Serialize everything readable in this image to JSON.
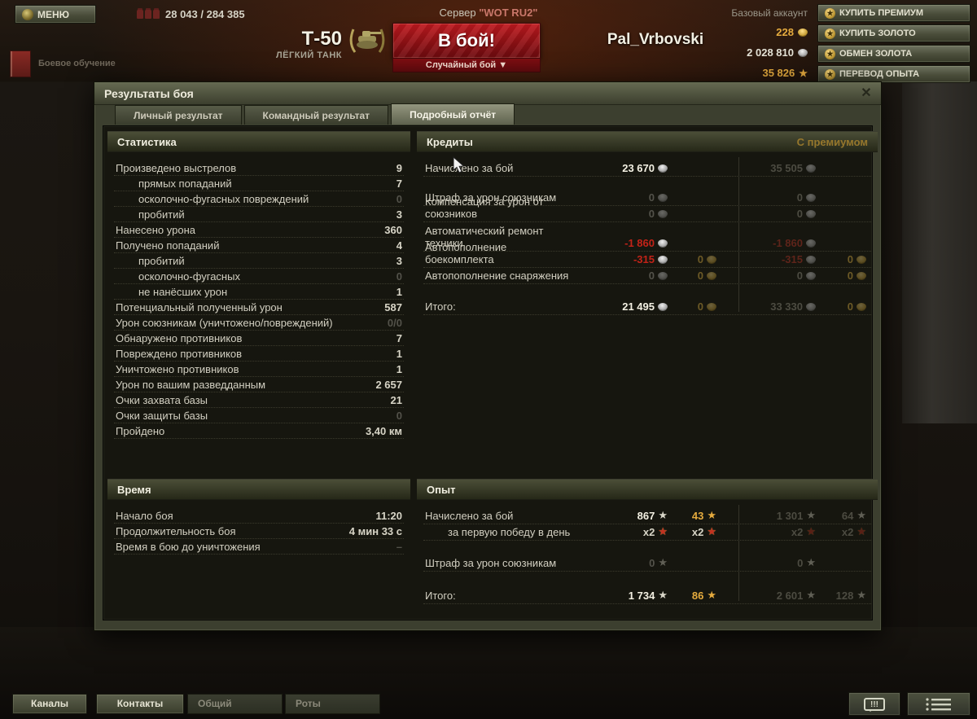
{
  "colors": {
    "accent_red": "#c32318",
    "gold": "#e5ab3e",
    "premium_dim": "#4c4b41",
    "olive": "#4a4d3a"
  },
  "top_bar": {
    "menu_label": "МЕНЮ",
    "online_counter": "28 043 / 284 385",
    "server_prefix": "Сервер",
    "server_name": "\"WOT RU2\"",
    "training_label": "Боевое обучение",
    "tank_name": "Т-50",
    "tank_type": "ЛЁГКИЙ ТАНК",
    "battle_button": "В бой!",
    "battle_mode": "Случайный бой ▼",
    "player_name": "Pal_Vrbovski",
    "account_type": "Базовый аккаунт",
    "gold_amount": "228",
    "silver_amount": "2 028 810",
    "free_xp_amount": "35 826",
    "buttons": [
      "КУПИТЬ ПРЕМИУМ",
      "КУПИТЬ ЗОЛОТО",
      "ОБМЕН ЗОЛОТА",
      "ПЕРЕВОД ОПЫТА"
    ]
  },
  "dialog": {
    "title": "Результаты боя",
    "close": "✕",
    "tabs": [
      {
        "label": "Личный результат",
        "active": false
      },
      {
        "label": "Командный результат",
        "active": false
      },
      {
        "label": "Подробный отчёт",
        "active": true
      }
    ],
    "statistics": {
      "header": "Статистика",
      "rows": [
        {
          "label": "Произведено выстрелов",
          "value": "9"
        },
        {
          "label": "прямых попаданий",
          "value": "7",
          "indent": true
        },
        {
          "label": "осколочно-фугасных повреждений",
          "value": "0",
          "indent": true,
          "dim": true
        },
        {
          "label": "пробитий",
          "value": "3",
          "indent": true
        },
        {
          "label": "Нанесено урона",
          "value": "360"
        },
        {
          "label": "Получено попаданий",
          "value": "4"
        },
        {
          "label": "пробитий",
          "value": "3",
          "indent": true
        },
        {
          "label": "осколочно-фугасных",
          "value": "0",
          "indent": true,
          "dim": true
        },
        {
          "label": "не нанёсших урон",
          "value": "1",
          "indent": true
        },
        {
          "label": "Потенциальный полученный урон",
          "value": "587"
        },
        {
          "label": "Урон союзникам (уничтожено/повреждений)",
          "value": "0/0",
          "dim": true
        },
        {
          "label": "Обнаружено противников",
          "value": "7"
        },
        {
          "label": "Повреждено противников",
          "value": "1"
        },
        {
          "label": "Уничтожено противников",
          "value": "1"
        },
        {
          "label": "Урон по вашим разведданным",
          "value": "2 657"
        },
        {
          "label": "Очки захвата базы",
          "value": "21"
        },
        {
          "label": "Очки защиты базы",
          "value": "0",
          "dim": true
        },
        {
          "label": "Пройдено",
          "value": "3,40 км"
        }
      ]
    },
    "credits": {
      "header": "Кредиты",
      "premium_label": "С премиумом",
      "rows": [
        {
          "label": "Начислено за бой",
          "cells": [
            {
              "t": "23 670",
              "cls": "white",
              "icon": "silver"
            },
            null,
            {
              "t": "35 505",
              "cls": "pdim",
              "icon": "silver"
            },
            null
          ]
        },
        {
          "spacer": 16
        },
        {
          "label": "Штраф за урон союзникам",
          "cells": [
            {
              "t": "0",
              "cls": "dim",
              "icon": "silver"
            },
            null,
            {
              "t": "0",
              "cls": "pdim",
              "icon": "silver"
            },
            null
          ]
        },
        {
          "label": "Компенсация за урон от союзников",
          "cells": [
            {
              "t": "0",
              "cls": "dim",
              "icon": "silver"
            },
            null,
            {
              "t": "0",
              "cls": "pdim",
              "icon": "silver"
            },
            null
          ]
        },
        {
          "spacer": 16
        },
        {
          "label": "Автоматический ремонт техники",
          "cells": [
            {
              "t": "-1 860",
              "cls": "red",
              "icon": "silver"
            },
            null,
            {
              "t": "-1 860",
              "cls": "dimred",
              "icon": "silver"
            },
            null
          ]
        },
        {
          "label": "Автопополнение боекомплекта",
          "cells": [
            {
              "t": "-315",
              "cls": "red",
              "icon": "silver"
            },
            {
              "t": "0",
              "cls": "dimgold",
              "icon": "gold"
            },
            {
              "t": "-315",
              "cls": "dimred",
              "icon": "silver"
            },
            {
              "t": "0",
              "cls": "dimgold",
              "icon": "gold"
            }
          ]
        },
        {
          "label": "Автопополнение снаряжения",
          "cells": [
            {
              "t": "0",
              "cls": "dim",
              "icon": "silver"
            },
            {
              "t": "0",
              "cls": "dimgold",
              "icon": "gold"
            },
            {
              "t": "0",
              "cls": "pdim",
              "icon": "silver"
            },
            {
              "t": "0",
              "cls": "dimgold",
              "icon": "gold"
            }
          ]
        },
        {
          "spacer": 16
        },
        {
          "label": "Итого:",
          "total": true,
          "cells": [
            {
              "t": "21 495",
              "cls": "white",
              "icon": "silver"
            },
            {
              "t": "0",
              "cls": "dimgold",
              "icon": "gold"
            },
            {
              "t": "33 330",
              "cls": "pdim",
              "icon": "silver"
            },
            {
              "t": "0",
              "cls": "dimgold",
              "icon": "gold"
            }
          ]
        }
      ]
    },
    "time": {
      "header": "Время",
      "rows": [
        {
          "label": "Начало боя",
          "value": "11:20"
        },
        {
          "label": "Продолжительность боя",
          "value": "4 мин 33 с"
        },
        {
          "label": "Время в бою до уничтожения",
          "value": "–",
          "dim": true
        }
      ]
    },
    "experience": {
      "header": "Опыт",
      "rows": [
        {
          "label": "Начислено за бой",
          "cells": [
            {
              "t": "867",
              "cls": "white",
              "icon": "star-silver"
            },
            {
              "t": "43",
              "cls": "gold",
              "icon": "star-gold"
            },
            {
              "t": "1 301",
              "cls": "pdim",
              "icon": "star-silver",
              "dimic": true
            },
            {
              "t": "64",
              "cls": "pdim",
              "icon": "star-silver",
              "dimic": true
            }
          ]
        },
        {
          "label": "за первую победу в день",
          "indent": true,
          "cells": [
            {
              "t": "x2",
              "cls": "norm",
              "icon": "star-red"
            },
            {
              "t": "x2",
              "cls": "norm",
              "icon": "star-red"
            },
            {
              "t": "x2",
              "cls": "pdim",
              "icon": "star-red",
              "dimic": true
            },
            {
              "t": "x2",
              "cls": "pdim",
              "icon": "star-red",
              "dimic": true
            }
          ]
        },
        {
          "spacer": 18
        },
        {
          "label": "Штраф за урон союзникам",
          "cells": [
            {
              "t": "0",
              "cls": "dim",
              "icon": "star-silver",
              "dimic": true
            },
            null,
            {
              "t": "0",
              "cls": "pdim",
              "icon": "star-silver",
              "dimic": true
            },
            null
          ]
        },
        {
          "spacer": 18
        },
        {
          "label": "Итого:",
          "total": true,
          "cells": [
            {
              "t": "1 734",
              "cls": "white",
              "icon": "star-silver"
            },
            {
              "t": "86",
              "cls": "gold",
              "icon": "star-gold"
            },
            {
              "t": "2 601",
              "cls": "pdim",
              "icon": "star-silver",
              "dimic": true
            },
            {
              "t": "128",
              "cls": "pdim",
              "icon": "star-silver",
              "dimic": true
            }
          ]
        }
      ]
    }
  },
  "bottom_bar": {
    "channels_label": "Каналы",
    "contacts_label": "Контакты",
    "general_tab": "Общий",
    "roty_tab": "Роты",
    "message_bubble_text": "!!!"
  }
}
